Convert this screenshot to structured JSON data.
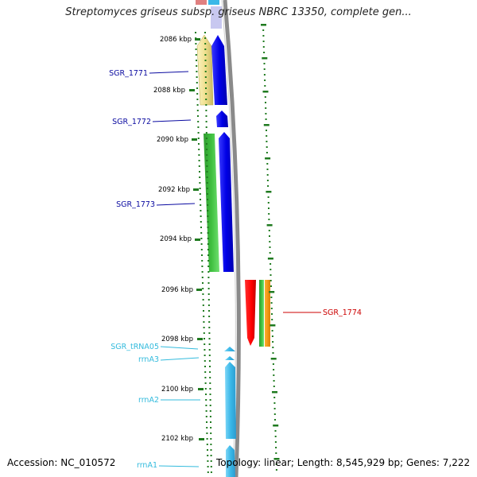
{
  "title": "Streptomyces griseus subsp. griseus NBRC 13350, complete gen...",
  "footer": {
    "accession": "Accession: NC_010572",
    "summary": "Topology: linear; Length: 8,545,929 bp; Genes: 7,222"
  },
  "ticks": [
    "2086 kbp",
    "2088 kbp",
    "2090 kbp",
    "2092 kbp",
    "2094 kbp",
    "2096 kbp",
    "2098 kbp",
    "2100 kbp",
    "2102 kbp"
  ],
  "genes": [
    {
      "label": "SGR_1771",
      "color": "#0a0aa0"
    },
    {
      "label": "SGR_1772",
      "color": "#0a0aa0"
    },
    {
      "label": "SGR_1773",
      "color": "#0a0aa0"
    },
    {
      "label": "SGR_1774",
      "color": "#cc0000"
    },
    {
      "label": "SGR_tRNA05",
      "color": "#33bbdd"
    },
    {
      "label": "rrnA3",
      "color": "#33bbdd"
    },
    {
      "label": "rrnA2",
      "color": "#33bbdd"
    },
    {
      "label": "rrnA1",
      "color": "#33bbdd"
    }
  ],
  "colors": {
    "cds_forward": "#0000ff",
    "rrna": "#3ab8e8",
    "pale_yellow": "#f0e090",
    "green": "#33bb33",
    "red": "#ff0000",
    "orange": "#ff9900",
    "tick": "#1f7a1f",
    "backbone": "#888888"
  }
}
